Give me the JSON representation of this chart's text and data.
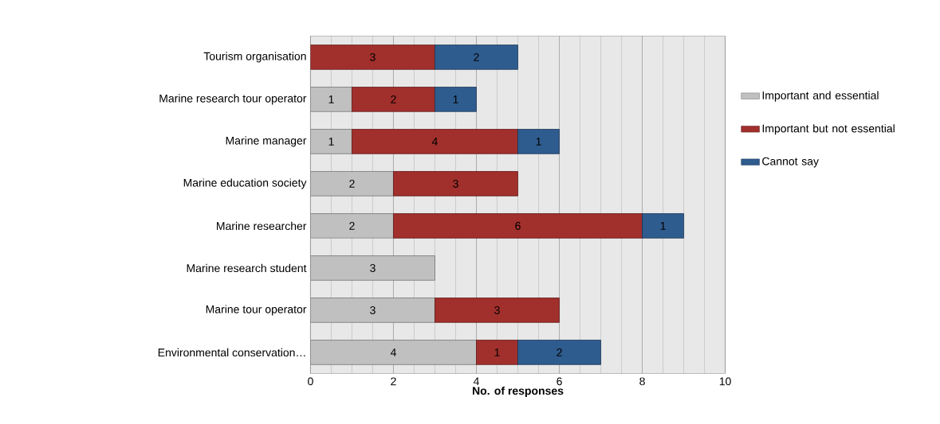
{
  "chart_data": {
    "type": "bar",
    "orientation": "horizontal",
    "stacked": true,
    "xlabel": "No. of responses",
    "categories": [
      "Tourism organisation",
      "Marine research tour operator",
      "Marine manager",
      "Marine education society",
      "Marine researcher",
      "Marine research student",
      "Marine tour operator",
      "Environmental conservation…"
    ],
    "series": [
      {
        "name": "Important and essential",
        "color": "#c0c0c0",
        "values": [
          null,
          1,
          1,
          2,
          2,
          3,
          3,
          4
        ]
      },
      {
        "name": "Important but not essential",
        "color": "#a12f2c",
        "values": [
          3,
          2,
          4,
          3,
          6,
          null,
          3,
          1
        ]
      },
      {
        "name": "Cannot say",
        "color": "#2f5c8e",
        "values": [
          2,
          1,
          1,
          null,
          1,
          null,
          null,
          2
        ]
      }
    ],
    "xlim": [
      0,
      10
    ],
    "xticks": [
      0,
      2,
      4,
      6,
      8,
      10
    ],
    "grid": "x",
    "legend": "right",
    "data_labels": true
  }
}
